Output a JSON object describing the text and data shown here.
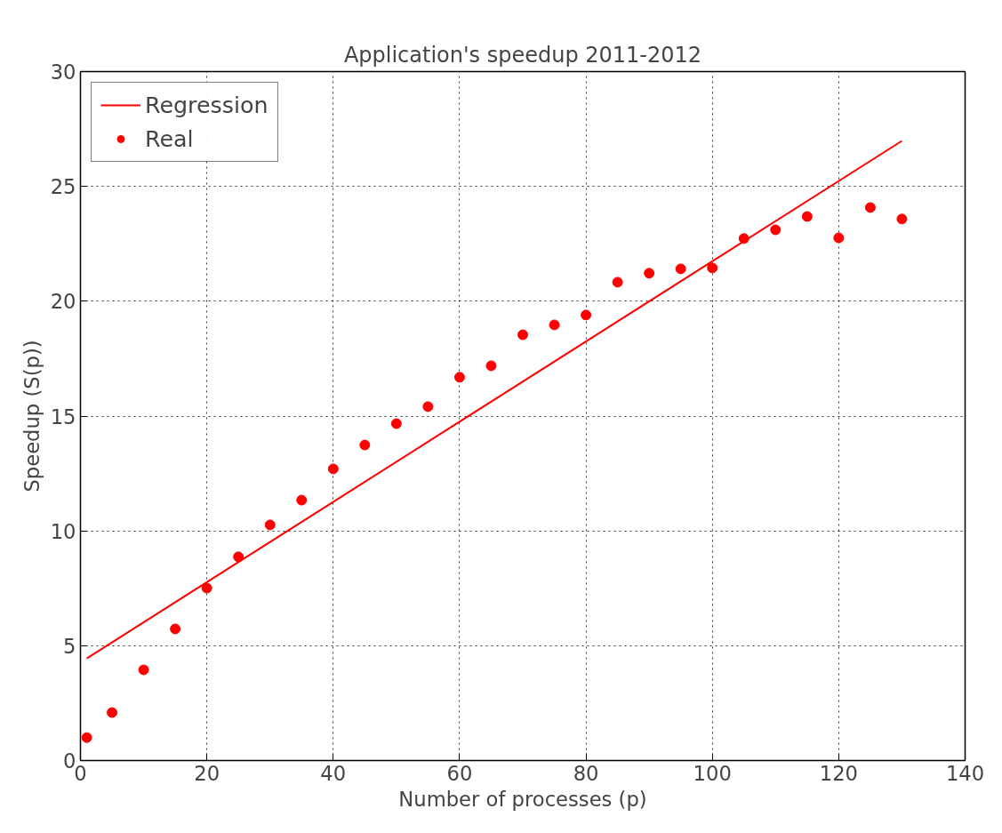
{
  "chart_data": {
    "type": "line",
    "title": "Application's speedup 2011-2012",
    "xlabel": "Number of processes (p)",
    "ylabel": "Speedup (S(p))",
    "xlim": [
      0,
      140
    ],
    "ylim": [
      0,
      30
    ],
    "xticks": [
      0,
      20,
      40,
      60,
      80,
      100,
      120,
      140
    ],
    "yticks": [
      0,
      5,
      10,
      15,
      20,
      25,
      30
    ],
    "grid": true,
    "legend": "top left",
    "series": [
      {
        "name": "Regression",
        "color": "#ff0000",
        "line_style": "solid",
        "marker": "none",
        "x": [
          1,
          130
        ],
        "values": [
          4.45,
          26.98
        ]
      },
      {
        "name": "Real",
        "type": "scatter",
        "color": "#ff0000",
        "marker": "circle",
        "x": [
          1,
          5,
          10,
          15,
          20,
          25,
          30,
          35,
          40,
          45,
          50,
          55,
          60,
          65,
          70,
          75,
          80,
          85,
          90,
          95,
          100,
          105,
          110,
          115,
          120,
          125,
          130
        ],
        "values": [
          1.0,
          2.09,
          3.95,
          5.73,
          7.51,
          8.87,
          10.26,
          11.34,
          12.7,
          13.74,
          14.67,
          15.41,
          16.69,
          17.19,
          18.54,
          18.97,
          19.4,
          20.83,
          21.22,
          21.41,
          21.45,
          22.73,
          23.11,
          23.69,
          22.76,
          24.08,
          23.58
        ]
      }
    ]
  }
}
